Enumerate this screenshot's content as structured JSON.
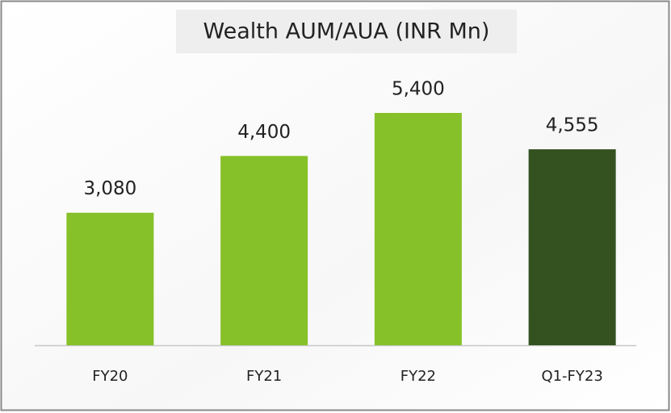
{
  "chart_data": {
    "type": "bar",
    "title": "Wealth AUM/AUA (INR Mn)",
    "categories": [
      "FY20",
      "FY21",
      "FY22",
      "Q1-FY23"
    ],
    "values": [
      3080,
      4400,
      5400,
      4555
    ],
    "value_labels": [
      "3,080",
      "4,400",
      "5,400",
      "4,555"
    ],
    "colors": [
      "#86c129",
      "#86c129",
      "#86c129",
      "#33521f"
    ]
  }
}
